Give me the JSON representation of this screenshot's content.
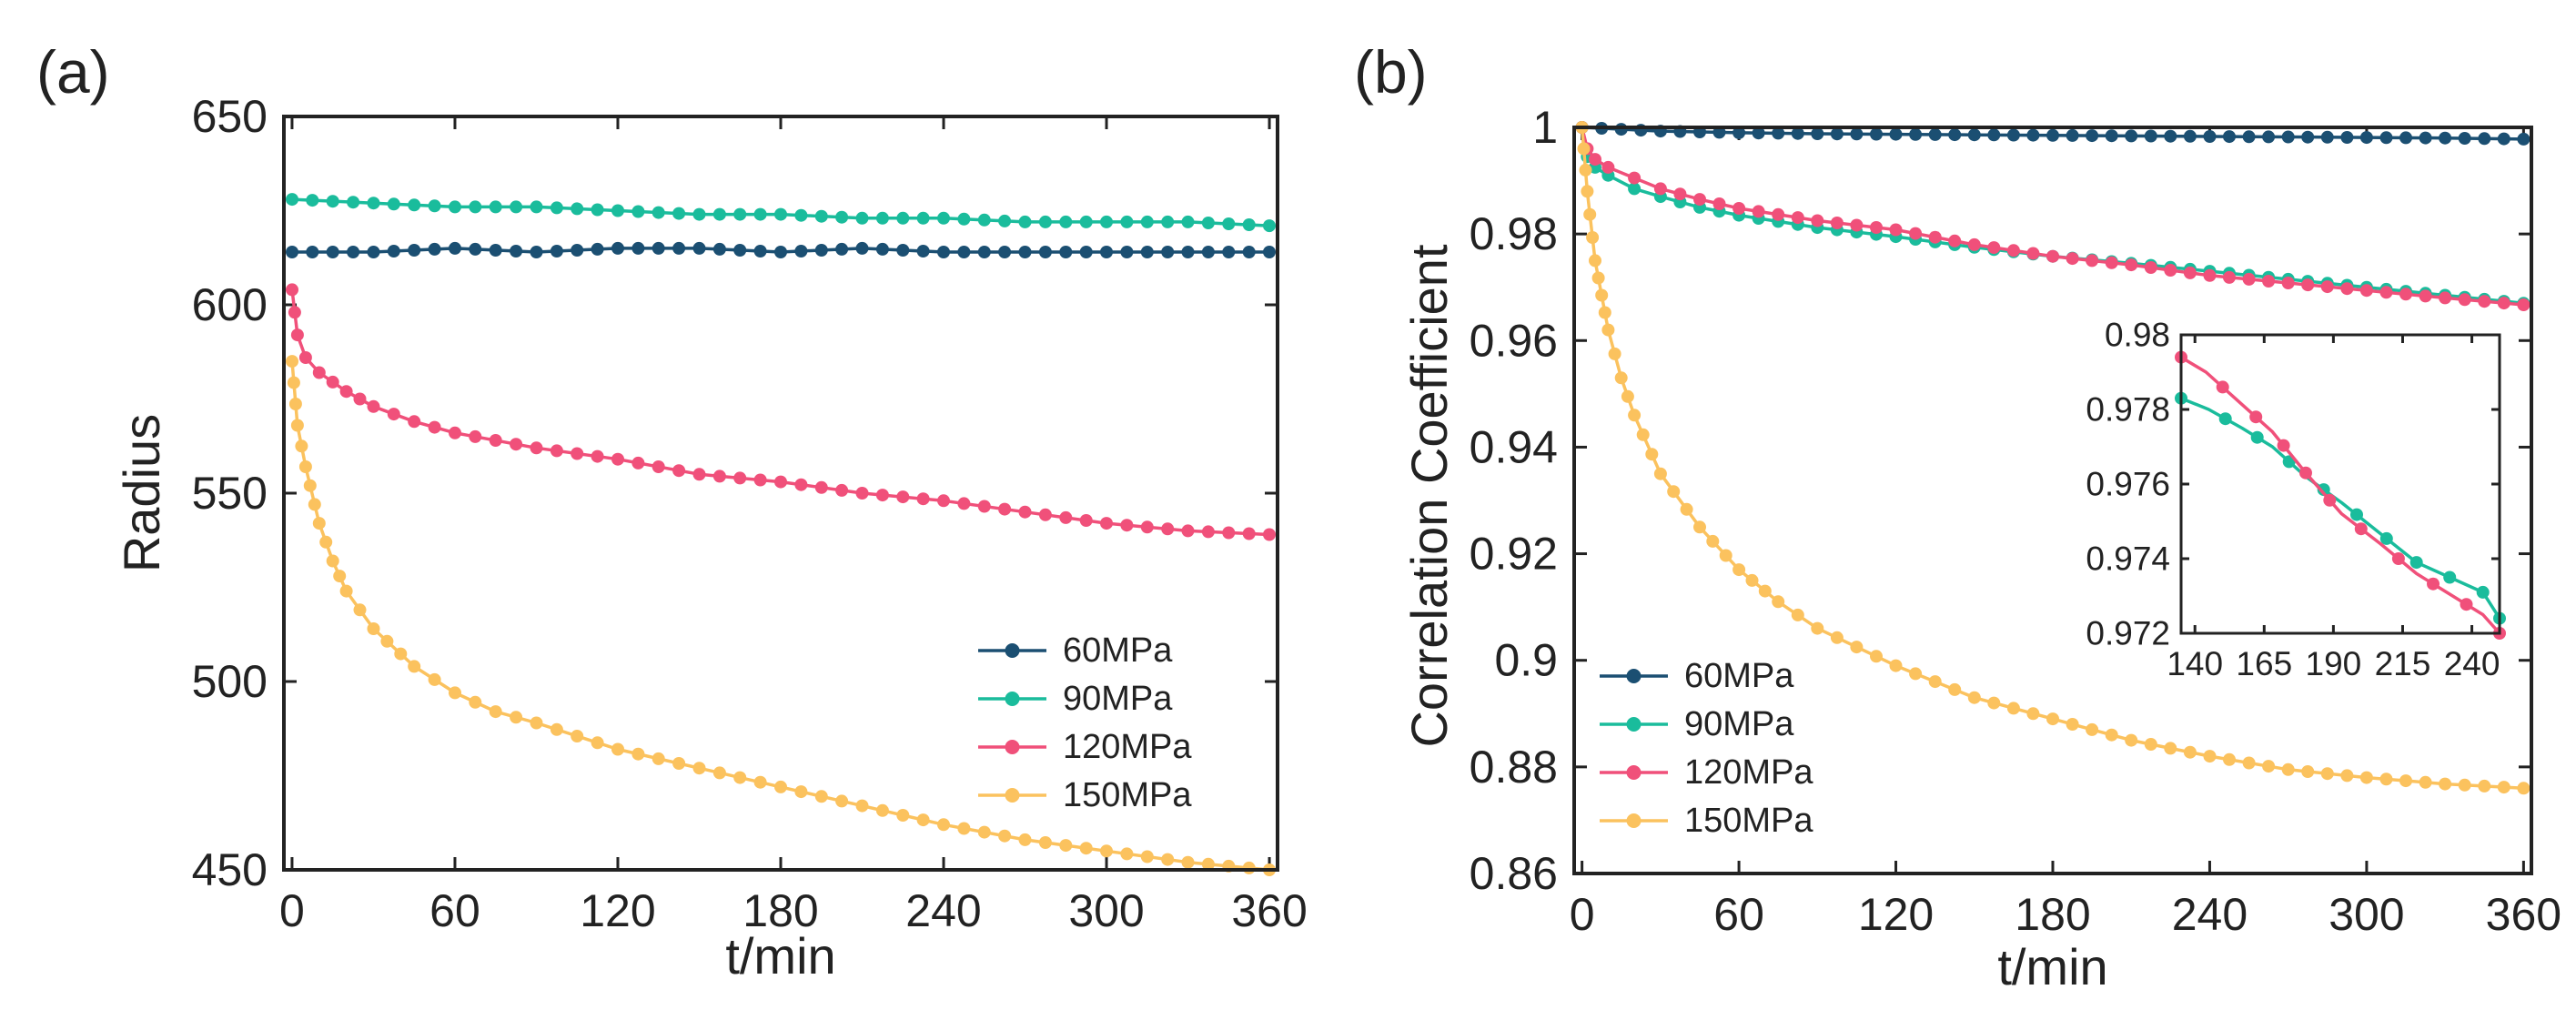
{
  "colors": {
    "60MPa": "#1b4f72",
    "90MPa": "#1abc9c",
    "120MPa": "#f0507a",
    "150MPa": "#fbc25e",
    "axis": "#222222"
  },
  "chart_data": [
    {
      "id": "a",
      "panel_label": "(a)",
      "type": "line",
      "title": "",
      "xlabel": "t/min",
      "ylabel": "Radius",
      "xlim": [
        -3,
        363
      ],
      "ylim": [
        450,
        650
      ],
      "xticks": [
        0,
        60,
        120,
        180,
        240,
        300,
        360
      ],
      "yticks": [
        450,
        500,
        550,
        600,
        650
      ],
      "legend_position": "bottom-right",
      "series": [
        {
          "name": "60MPa",
          "color_key": "60MPa",
          "x": [
            0,
            30,
            60,
            90,
            120,
            150,
            180,
            210,
            240,
            270,
            300,
            330,
            360
          ],
          "y": [
            614,
            614,
            615,
            614,
            615,
            615,
            614,
            615,
            614,
            614,
            614,
            614,
            614
          ]
        },
        {
          "name": "90MPa",
          "color_key": "90MPa",
          "x": [
            0,
            30,
            60,
            90,
            120,
            150,
            180,
            210,
            240,
            270,
            300,
            330,
            360
          ],
          "y": [
            628,
            627,
            626,
            626,
            625,
            624,
            624,
            623,
            623,
            622,
            622,
            622,
            621
          ]
        },
        {
          "name": "120MPa",
          "color_key": "120MPa",
          "x": [
            0,
            2,
            5,
            10,
            20,
            30,
            45,
            60,
            90,
            120,
            150,
            180,
            210,
            240,
            270,
            300,
            330,
            360
          ],
          "y": [
            604,
            592,
            586,
            582,
            577,
            573,
            569,
            566,
            562,
            559,
            555,
            553,
            550,
            548,
            545,
            542,
            540,
            539
          ]
        },
        {
          "name": "150MPa",
          "color_key": "150MPa",
          "x": [
            0,
            2,
            5,
            10,
            15,
            20,
            30,
            45,
            60,
            75,
            90,
            120,
            150,
            180,
            210,
            240,
            270,
            300,
            330,
            360
          ],
          "y": [
            585,
            568,
            557,
            542,
            532,
            524,
            514,
            504,
            497,
            492,
            489,
            482,
            477,
            472,
            467,
            462,
            458,
            455,
            452,
            450
          ]
        }
      ]
    },
    {
      "id": "b",
      "panel_label": "(b)",
      "type": "line",
      "title": "",
      "xlabel": "t/min",
      "ylabel": "Correlation Coefficient",
      "xlim": [
        -3,
        363
      ],
      "ylim": [
        0.86,
        1
      ],
      "xticks": [
        0,
        60,
        120,
        180,
        240,
        300,
        360
      ],
      "yticks": [
        0.86,
        0.88,
        0.9,
        0.92,
        0.94,
        0.96,
        0.98,
        1
      ],
      "ytick_labels": [
        "0.86",
        "0.88",
        "0.9",
        "0.92",
        "0.94",
        "0.96",
        "0.98",
        "1"
      ],
      "legend_position": "bottom-left",
      "series": [
        {
          "name": "60MPa",
          "color_key": "60MPa",
          "x": [
            0,
            30,
            60,
            90,
            120,
            150,
            180,
            210,
            240,
            270,
            300,
            330,
            360
          ],
          "y": [
            1.0,
            0.9993,
            0.999,
            0.9988,
            0.9987,
            0.9986,
            0.9985,
            0.9984,
            0.9983,
            0.9982,
            0.9981,
            0.998,
            0.9978
          ]
        },
        {
          "name": "90MPa",
          "color_key": "90MPa",
          "x": [
            0,
            2,
            5,
            10,
            20,
            30,
            45,
            60,
            90,
            120,
            150,
            180,
            210,
            240,
            270,
            300,
            330,
            360
          ],
          "y": [
            1.0,
            0.9945,
            0.9925,
            0.991,
            0.9885,
            0.987,
            0.985,
            0.9835,
            0.9812,
            0.9795,
            0.9775,
            0.9758,
            0.9745,
            0.973,
            0.9715,
            0.97,
            0.9685,
            0.967
          ]
        },
        {
          "name": "120MPa",
          "color_key": "120MPa",
          "x": [
            0,
            2,
            5,
            10,
            20,
            30,
            45,
            60,
            90,
            120,
            150,
            180,
            210,
            240,
            270,
            300,
            330,
            360
          ],
          "y": [
            1.0,
            0.996,
            0.994,
            0.9925,
            0.9905,
            0.9885,
            0.9865,
            0.9848,
            0.9825,
            0.9808,
            0.978,
            0.9758,
            0.9742,
            0.9722,
            0.9708,
            0.9694,
            0.968,
            0.9667
          ]
        },
        {
          "name": "150MPa",
          "color_key": "150MPa",
          "x": [
            0,
            2,
            5,
            10,
            15,
            20,
            30,
            45,
            60,
            75,
            90,
            120,
            150,
            180,
            210,
            240,
            270,
            300,
            330,
            360
          ],
          "y": [
            1.0,
            0.988,
            0.975,
            0.962,
            0.953,
            0.946,
            0.935,
            0.925,
            0.917,
            0.911,
            0.906,
            0.899,
            0.893,
            0.889,
            0.885,
            0.882,
            0.8795,
            0.878,
            0.8768,
            0.876
          ]
        }
      ]
    },
    {
      "id": "b-inset",
      "panel_label": "",
      "type": "line",
      "title": "",
      "xlabel": "",
      "ylabel": "",
      "xlim": [
        135,
        250
      ],
      "ylim": [
        0.972,
        0.98
      ],
      "xticks": [
        140,
        165,
        190,
        215,
        240
      ],
      "yticks": [
        0.972,
        0.974,
        0.976,
        0.978,
        0.98
      ],
      "ytick_labels": [
        "0.972",
        "0.974",
        "0.976",
        "0.978",
        "0.98"
      ],
      "series": [
        {
          "name": "90MPa",
          "color_key": "90MPa",
          "x": [
            135,
            145,
            157,
            168,
            180,
            193,
            220,
            244,
            250
          ],
          "y": [
            0.9783,
            0.978,
            0.9775,
            0.977,
            0.9762,
            0.9755,
            0.9739,
            0.9731,
            0.9724
          ]
        },
        {
          "name": "120MPa",
          "color_key": "120MPa",
          "x": [
            135,
            144,
            156,
            168,
            180,
            193,
            207,
            220,
            244,
            250
          ],
          "y": [
            0.9794,
            0.979,
            0.9782,
            0.9774,
            0.9763,
            0.9752,
            0.9744,
            0.9736,
            0.9725,
            0.972
          ]
        }
      ]
    }
  ]
}
